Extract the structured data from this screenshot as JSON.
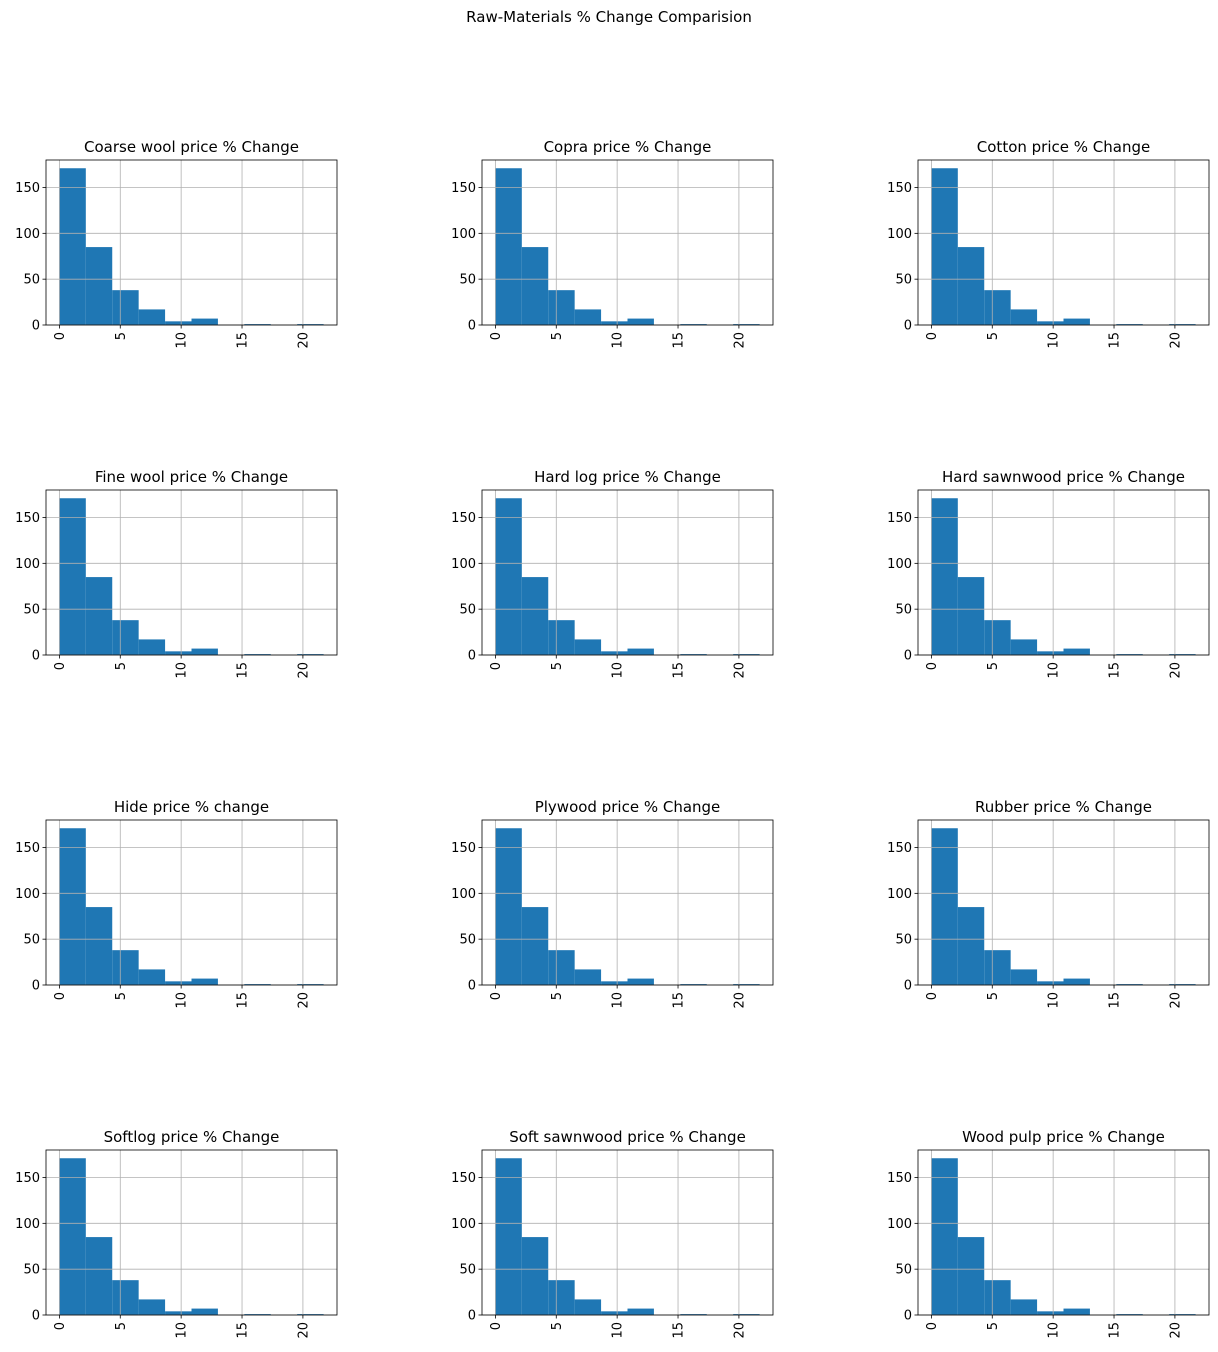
{
  "title": "Raw-Materials % Change Comparision",
  "bar_color": "#1f77b4",
  "chart_data": [
    {
      "type": "bar",
      "title": "Coarse wool price % Change",
      "bin_edges": [
        0,
        2.17,
        4.34,
        6.51,
        8.68,
        10.85,
        13.02,
        15.19,
        17.36,
        19.53,
        21.7
      ],
      "values": [
        171,
        85,
        38,
        17,
        4,
        7,
        0,
        1,
        0,
        1
      ],
      "xticks": [
        "0",
        "5",
        "10",
        "15",
        "20"
      ],
      "yticks": [
        "0",
        "50",
        "100",
        "150"
      ],
      "xlim": [
        -1.1,
        22.8
      ],
      "ylim": [
        0,
        180
      ],
      "grid": true
    },
    {
      "type": "bar",
      "title": "Copra price % Change",
      "bin_edges": [
        0,
        2.17,
        4.34,
        6.51,
        8.68,
        10.85,
        13.02,
        15.19,
        17.36,
        19.53,
        21.7
      ],
      "values": [
        171,
        85,
        38,
        17,
        4,
        7,
        0,
        1,
        0,
        1
      ],
      "xticks": [
        "0",
        "5",
        "10",
        "15",
        "20"
      ],
      "yticks": [
        "0",
        "50",
        "100",
        "150"
      ],
      "xlim": [
        -1.1,
        22.8
      ],
      "ylim": [
        0,
        180
      ],
      "grid": true
    },
    {
      "type": "bar",
      "title": "Cotton price % Change",
      "bin_edges": [
        0,
        2.17,
        4.34,
        6.51,
        8.68,
        10.85,
        13.02,
        15.19,
        17.36,
        19.53,
        21.7
      ],
      "values": [
        171,
        85,
        38,
        17,
        4,
        7,
        0,
        1,
        0,
        1
      ],
      "xticks": [
        "0",
        "5",
        "10",
        "15",
        "20"
      ],
      "yticks": [
        "0",
        "50",
        "100",
        "150"
      ],
      "xlim": [
        -1.1,
        22.8
      ],
      "ylim": [
        0,
        180
      ],
      "grid": true
    },
    {
      "type": "bar",
      "title": "Fine wool price % Change",
      "bin_edges": [
        0,
        2.17,
        4.34,
        6.51,
        8.68,
        10.85,
        13.02,
        15.19,
        17.36,
        19.53,
        21.7
      ],
      "values": [
        171,
        85,
        38,
        17,
        4,
        7,
        0,
        1,
        0,
        1
      ],
      "xticks": [
        "0",
        "5",
        "10",
        "15",
        "20"
      ],
      "yticks": [
        "0",
        "50",
        "100",
        "150"
      ],
      "xlim": [
        -1.1,
        22.8
      ],
      "ylim": [
        0,
        180
      ],
      "grid": true
    },
    {
      "type": "bar",
      "title": "Hard log price % Change",
      "bin_edges": [
        0,
        2.17,
        4.34,
        6.51,
        8.68,
        10.85,
        13.02,
        15.19,
        17.36,
        19.53,
        21.7
      ],
      "values": [
        171,
        85,
        38,
        17,
        4,
        7,
        0,
        1,
        0,
        1
      ],
      "xticks": [
        "0",
        "5",
        "10",
        "15",
        "20"
      ],
      "yticks": [
        "0",
        "50",
        "100",
        "150"
      ],
      "xlim": [
        -1.1,
        22.8
      ],
      "ylim": [
        0,
        180
      ],
      "grid": true
    },
    {
      "type": "bar",
      "title": "Hard sawnwood price % Change",
      "bin_edges": [
        0,
        2.17,
        4.34,
        6.51,
        8.68,
        10.85,
        13.02,
        15.19,
        17.36,
        19.53,
        21.7
      ],
      "values": [
        171,
        85,
        38,
        17,
        4,
        7,
        0,
        1,
        0,
        1
      ],
      "xticks": [
        "0",
        "5",
        "10",
        "15",
        "20"
      ],
      "yticks": [
        "0",
        "50",
        "100",
        "150"
      ],
      "xlim": [
        -1.1,
        22.8
      ],
      "ylim": [
        0,
        180
      ],
      "grid": true
    },
    {
      "type": "bar",
      "title": "Hide price % change",
      "bin_edges": [
        0,
        2.17,
        4.34,
        6.51,
        8.68,
        10.85,
        13.02,
        15.19,
        17.36,
        19.53,
        21.7
      ],
      "values": [
        171,
        85,
        38,
        17,
        4,
        7,
        0,
        1,
        0,
        1
      ],
      "xticks": [
        "0",
        "5",
        "10",
        "15",
        "20"
      ],
      "yticks": [
        "0",
        "50",
        "100",
        "150"
      ],
      "xlim": [
        -1.1,
        22.8
      ],
      "ylim": [
        0,
        180
      ],
      "grid": true
    },
    {
      "type": "bar",
      "title": "Plywood price % Change",
      "bin_edges": [
        0,
        2.17,
        4.34,
        6.51,
        8.68,
        10.85,
        13.02,
        15.19,
        17.36,
        19.53,
        21.7
      ],
      "values": [
        171,
        85,
        38,
        17,
        4,
        7,
        0,
        1,
        0,
        1
      ],
      "xticks": [
        "0",
        "5",
        "10",
        "15",
        "20"
      ],
      "yticks": [
        "0",
        "50",
        "100",
        "150"
      ],
      "xlim": [
        -1.1,
        22.8
      ],
      "ylim": [
        0,
        180
      ],
      "grid": true
    },
    {
      "type": "bar",
      "title": "Rubber price % Change",
      "bin_edges": [
        0,
        2.17,
        4.34,
        6.51,
        8.68,
        10.85,
        13.02,
        15.19,
        17.36,
        19.53,
        21.7
      ],
      "values": [
        171,
        85,
        38,
        17,
        4,
        7,
        0,
        1,
        0,
        1
      ],
      "xticks": [
        "0",
        "5",
        "10",
        "15",
        "20"
      ],
      "yticks": [
        "0",
        "50",
        "100",
        "150"
      ],
      "xlim": [
        -1.1,
        22.8
      ],
      "ylim": [
        0,
        180
      ],
      "grid": true
    },
    {
      "type": "bar",
      "title": "Softlog price % Change",
      "bin_edges": [
        0,
        2.17,
        4.34,
        6.51,
        8.68,
        10.85,
        13.02,
        15.19,
        17.36,
        19.53,
        21.7
      ],
      "values": [
        171,
        85,
        38,
        17,
        4,
        7,
        0,
        1,
        0,
        1
      ],
      "xticks": [
        "0",
        "5",
        "10",
        "15",
        "20"
      ],
      "yticks": [
        "0",
        "50",
        "100",
        "150"
      ],
      "xlim": [
        -1.1,
        22.8
      ],
      "ylim": [
        0,
        180
      ],
      "grid": true
    },
    {
      "type": "bar",
      "title": "Soft sawnwood price % Change",
      "bin_edges": [
        0,
        2.17,
        4.34,
        6.51,
        8.68,
        10.85,
        13.02,
        15.19,
        17.36,
        19.53,
        21.7
      ],
      "values": [
        171,
        85,
        38,
        17,
        4,
        7,
        0,
        1,
        0,
        1
      ],
      "xticks": [
        "0",
        "5",
        "10",
        "15",
        "20"
      ],
      "yticks": [
        "0",
        "50",
        "100",
        "150"
      ],
      "xlim": [
        -1.1,
        22.8
      ],
      "ylim": [
        0,
        180
      ],
      "grid": true
    },
    {
      "type": "bar",
      "title": "Wood pulp price % Change",
      "bin_edges": [
        0,
        2.17,
        4.34,
        6.51,
        8.68,
        10.85,
        13.02,
        15.19,
        17.36,
        19.53,
        21.7
      ],
      "values": [
        171,
        85,
        38,
        17,
        4,
        7,
        0,
        1,
        0,
        1
      ],
      "xticks": [
        "0",
        "5",
        "10",
        "15",
        "20"
      ],
      "yticks": [
        "0",
        "50",
        "100",
        "150"
      ],
      "xlim": [
        -1.1,
        22.8
      ],
      "ylim": [
        0,
        180
      ],
      "grid": true
    }
  ]
}
